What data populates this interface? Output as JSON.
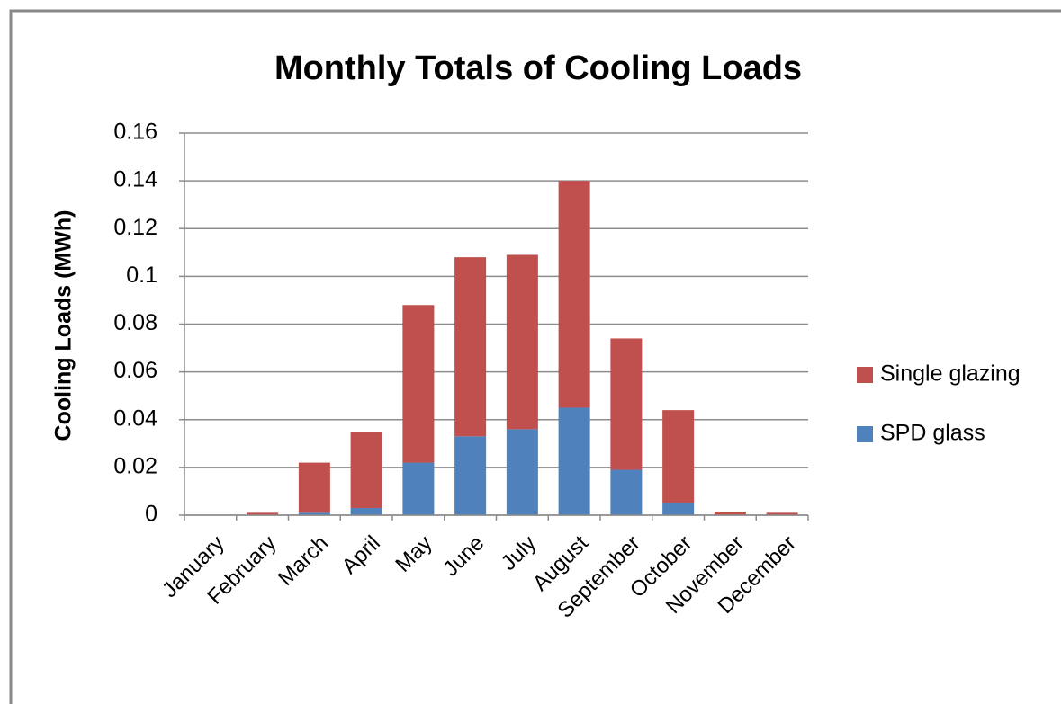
{
  "chart_data": {
    "type": "stacked-bar",
    "title": "Monthly Totals of Cooling Loads",
    "y_label": "Cooling Loads (MWh)",
    "categories": [
      "January",
      "February",
      "March",
      "April",
      "May",
      "June",
      "July",
      "August",
      "September",
      "October",
      "November",
      "December"
    ],
    "series": [
      {
        "name": "SPD glass",
        "color": "#4f81bd",
        "values": [
          0,
          0,
          0.001,
          0.003,
          0.022,
          0.033,
          0.036,
          0.045,
          0.019,
          0.005,
          0,
          0
        ]
      },
      {
        "name": "Single glazing",
        "color": "#c0504d",
        "values": [
          0,
          0.001,
          0.021,
          0.032,
          0.066,
          0.075,
          0.073,
          0.095,
          0.055,
          0.039,
          0.0015,
          0.001
        ]
      }
    ],
    "ylim": [
      0,
      0.16
    ],
    "yticks": [
      0,
      0.02,
      0.04,
      0.06,
      0.08,
      0.1,
      0.12,
      0.14,
      0.16
    ],
    "grid": true,
    "legend": "right"
  }
}
